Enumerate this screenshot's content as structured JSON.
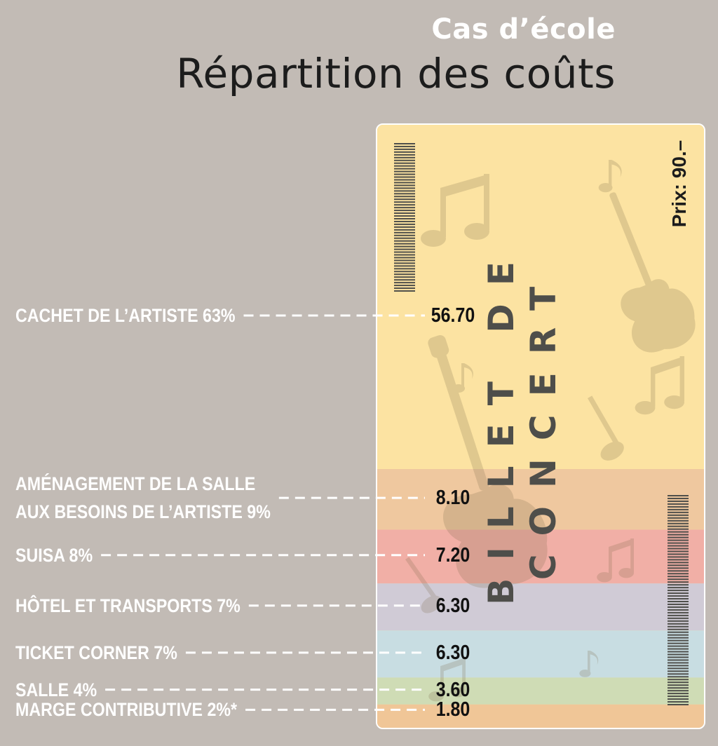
{
  "heading": {
    "kicker": "Cas d’école",
    "title": "Répartition des coûts"
  },
  "ticket": {
    "title": "BILLET DE CONCERT",
    "price": "Prix: 90.–",
    "base_color": "#fce3a2"
  },
  "chart_data": {
    "type": "bar",
    "title": "Répartition des coûts",
    "subtitle": "Cas d’école",
    "unit": "",
    "total": 90,
    "categories": [
      {
        "name": "CACHET DE L’ARTISTE 63%",
        "lines": [
          "CACHET DE L’ARTISTE 63%"
        ],
        "percent": 63,
        "value": 56.7,
        "label": "56.70",
        "color": "#fce3a2"
      },
      {
        "name": "AMÉNAGEMENT DE LA SALLE AUX BESOINS DE L’ARTISTE 9%",
        "lines": [
          "AMÉNAGEMENT DE LA SALLE",
          "AUX BESOINS DE L’ARTISTE 9%"
        ],
        "percent": 9,
        "value": 8.1,
        "label": "8.10",
        "color": "#efc89f"
      },
      {
        "name": "SUISA 8%",
        "lines": [
          "SUISA 8%"
        ],
        "percent": 8,
        "value": 7.2,
        "label": "7.20",
        "color": "#f1afa6"
      },
      {
        "name": "HÔTEL ET TRANSPORTS 7%",
        "lines": [
          "HÔTEL ET TRANSPORTS 7%"
        ],
        "percent": 7,
        "value": 6.3,
        "label": "6.30",
        "color": "#d0cbd6"
      },
      {
        "name": "TICKET CORNER 7%",
        "lines": [
          "TICKET CORNER 7%"
        ],
        "percent": 7,
        "value": 6.3,
        "label": "6.30",
        "color": "#c8dde2"
      },
      {
        "name": "SALLE 4%",
        "lines": [
          "SALLE 4%"
        ],
        "percent": 4,
        "value": 3.6,
        "label": "3.60",
        "color": "#cfdcb5"
      },
      {
        "name": "MARGE CONTRIBUTIVE 2%*",
        "lines": [
          "MARGE CONTRIBUTIVE 2%*"
        ],
        "percent": 2,
        "value": 1.8,
        "label": "1.80",
        "color": "#f0c697"
      }
    ]
  }
}
